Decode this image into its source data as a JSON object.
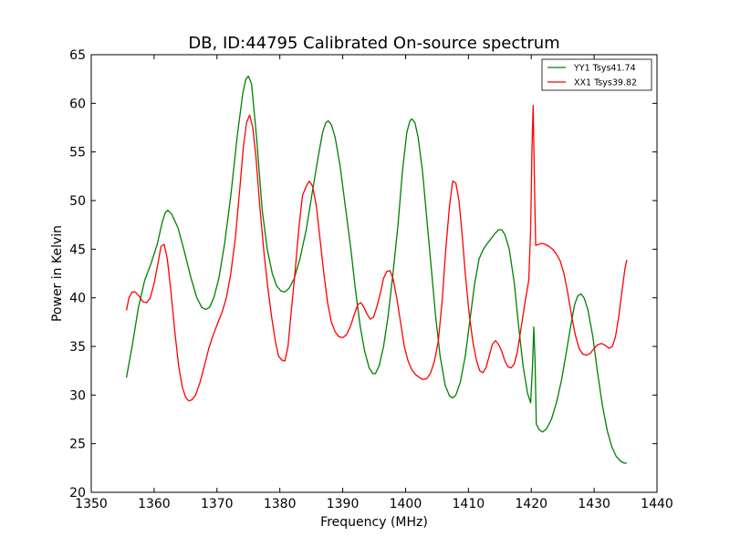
{
  "chart_data": {
    "type": "line",
    "title": "DB, ID:44795 Calibrated On-source spectrum",
    "xlabel": "Frequency (MHz)",
    "ylabel": "Power in Kelvin",
    "xlim": [
      1350,
      1440
    ],
    "ylim": [
      20,
      65
    ],
    "xticks": [
      1350,
      1360,
      1370,
      1380,
      1390,
      1400,
      1410,
      1420,
      1430,
      1440
    ],
    "yticks": [
      20,
      25,
      30,
      35,
      40,
      45,
      50,
      55,
      60,
      65
    ],
    "grid": false,
    "legend_position": "top-right",
    "series": [
      {
        "name": "YY1 Tsys41.74",
        "color": "#008000",
        "points": [
          [
            1355.6,
            31.8
          ],
          [
            1356.5,
            35.0
          ],
          [
            1357.5,
            39.0
          ],
          [
            1358.5,
            41.8
          ],
          [
            1359.5,
            43.5
          ],
          [
            1360.5,
            45.5
          ],
          [
            1361.3,
            47.8
          ],
          [
            1361.8,
            48.8
          ],
          [
            1362.2,
            49.0
          ],
          [
            1362.8,
            48.6
          ],
          [
            1363.8,
            47.2
          ],
          [
            1364.8,
            44.8
          ],
          [
            1365.8,
            42.2
          ],
          [
            1366.8,
            40.0
          ],
          [
            1367.6,
            39.0
          ],
          [
            1368.2,
            38.8
          ],
          [
            1368.8,
            39.0
          ],
          [
            1369.5,
            40.0
          ],
          [
            1370.3,
            42.0
          ],
          [
            1371.2,
            45.5
          ],
          [
            1372.2,
            50.5
          ],
          [
            1373.2,
            56.5
          ],
          [
            1374.1,
            61.0
          ],
          [
            1374.6,
            62.5
          ],
          [
            1375.0,
            62.8
          ],
          [
            1375.5,
            62.0
          ],
          [
            1376.3,
            56.5
          ],
          [
            1377.2,
            49.0
          ],
          [
            1378.0,
            45.0
          ],
          [
            1378.8,
            42.5
          ],
          [
            1379.5,
            41.2
          ],
          [
            1380.2,
            40.7
          ],
          [
            1380.8,
            40.6
          ],
          [
            1381.5,
            41.0
          ],
          [
            1382.3,
            42.0
          ],
          [
            1383.2,
            44.0
          ],
          [
            1384.2,
            47.0
          ],
          [
            1385.2,
            51.0
          ],
          [
            1386.1,
            54.5
          ],
          [
            1386.8,
            57.0
          ],
          [
            1387.3,
            58.0
          ],
          [
            1387.7,
            58.2
          ],
          [
            1388.2,
            57.8
          ],
          [
            1388.8,
            56.5
          ],
          [
            1389.6,
            53.5
          ],
          [
            1390.5,
            49.0
          ],
          [
            1391.3,
            45.0
          ],
          [
            1392.0,
            41.0
          ],
          [
            1392.8,
            37.0
          ],
          [
            1393.5,
            34.5
          ],
          [
            1394.2,
            32.8
          ],
          [
            1394.8,
            32.2
          ],
          [
            1395.2,
            32.2
          ],
          [
            1395.8,
            33.0
          ],
          [
            1396.5,
            35.0
          ],
          [
            1397.2,
            38.0
          ],
          [
            1398.0,
            42.5
          ],
          [
            1398.8,
            47.5
          ],
          [
            1399.5,
            53.0
          ],
          [
            1400.2,
            57.0
          ],
          [
            1400.7,
            58.2
          ],
          [
            1401.0,
            58.4
          ],
          [
            1401.5,
            58.0
          ],
          [
            1402.0,
            56.5
          ],
          [
            1402.7,
            53.0
          ],
          [
            1403.4,
            48.0
          ],
          [
            1404.1,
            43.0
          ],
          [
            1404.8,
            38.0
          ],
          [
            1405.5,
            34.0
          ],
          [
            1406.3,
            31.0
          ],
          [
            1407.0,
            29.9
          ],
          [
            1407.5,
            29.7
          ],
          [
            1408.0,
            30.0
          ],
          [
            1408.7,
            31.3
          ],
          [
            1409.5,
            34.0
          ],
          [
            1410.3,
            38.0
          ],
          [
            1411.0,
            41.5
          ],
          [
            1411.7,
            44.0
          ],
          [
            1412.3,
            44.9
          ],
          [
            1412.9,
            45.5
          ],
          [
            1413.5,
            46.0
          ],
          [
            1414.2,
            46.6
          ],
          [
            1414.8,
            47.0
          ],
          [
            1415.3,
            47.0
          ],
          [
            1415.8,
            46.5
          ],
          [
            1416.5,
            45.0
          ],
          [
            1417.3,
            41.5
          ],
          [
            1418.0,
            37.0
          ],
          [
            1418.7,
            33.0
          ],
          [
            1419.4,
            30.2
          ],
          [
            1419.9,
            29.2
          ],
          [
            1420.2,
            33.0
          ],
          [
            1420.4,
            37.0
          ],
          [
            1420.6,
            33.5
          ],
          [
            1420.8,
            27.0
          ],
          [
            1421.3,
            26.4
          ],
          [
            1421.8,
            26.2
          ],
          [
            1422.4,
            26.5
          ],
          [
            1423.2,
            27.5
          ],
          [
            1424.0,
            29.2
          ],
          [
            1424.8,
            31.5
          ],
          [
            1425.6,
            34.5
          ],
          [
            1426.3,
            37.2
          ],
          [
            1426.9,
            39.3
          ],
          [
            1427.4,
            40.2
          ],
          [
            1427.9,
            40.4
          ],
          [
            1428.4,
            40.0
          ],
          [
            1429.0,
            38.8
          ],
          [
            1429.8,
            36.0
          ],
          [
            1430.5,
            32.5
          ],
          [
            1431.3,
            29.0
          ],
          [
            1432.1,
            26.3
          ],
          [
            1432.8,
            24.7
          ],
          [
            1433.5,
            23.7
          ],
          [
            1434.2,
            23.2
          ],
          [
            1434.8,
            23.0
          ],
          [
            1435.2,
            23.0
          ]
        ]
      },
      {
        "name": "XX1 Tsys39.82",
        "color": "#ff0000",
        "points": [
          [
            1355.6,
            38.7
          ],
          [
            1356.0,
            40.0
          ],
          [
            1356.5,
            40.6
          ],
          [
            1357.0,
            40.6
          ],
          [
            1357.6,
            40.2
          ],
          [
            1358.2,
            39.6
          ],
          [
            1358.8,
            39.5
          ],
          [
            1359.4,
            40.0
          ],
          [
            1360.0,
            41.5
          ],
          [
            1360.6,
            43.5
          ],
          [
            1361.1,
            45.3
          ],
          [
            1361.6,
            45.5
          ],
          [
            1362.1,
            44.0
          ],
          [
            1362.7,
            40.5
          ],
          [
            1363.3,
            36.5
          ],
          [
            1363.9,
            33.0
          ],
          [
            1364.5,
            30.8
          ],
          [
            1365.0,
            29.8
          ],
          [
            1365.5,
            29.4
          ],
          [
            1366.0,
            29.5
          ],
          [
            1366.6,
            30.0
          ],
          [
            1367.3,
            31.3
          ],
          [
            1368.0,
            33.0
          ],
          [
            1368.7,
            34.8
          ],
          [
            1369.3,
            36.0
          ],
          [
            1370.0,
            37.2
          ],
          [
            1370.8,
            38.5
          ],
          [
            1371.5,
            40.0
          ],
          [
            1372.2,
            42.5
          ],
          [
            1372.9,
            46.0
          ],
          [
            1373.6,
            51.0
          ],
          [
            1374.2,
            55.5
          ],
          [
            1374.7,
            58.0
          ],
          [
            1375.2,
            58.8
          ],
          [
            1375.7,
            57.5
          ],
          [
            1376.2,
            54.5
          ],
          [
            1376.8,
            49.5
          ],
          [
            1377.5,
            44.5
          ],
          [
            1378.1,
            41.0
          ],
          [
            1378.7,
            38.0
          ],
          [
            1379.3,
            35.5
          ],
          [
            1379.8,
            34.0
          ],
          [
            1380.3,
            33.6
          ],
          [
            1380.8,
            33.5
          ],
          [
            1381.3,
            35.0
          ],
          [
            1381.8,
            38.5
          ],
          [
            1382.4,
            42.5
          ],
          [
            1383.0,
            47.0
          ],
          [
            1383.6,
            50.5
          ],
          [
            1384.2,
            51.5
          ],
          [
            1384.7,
            52.0
          ],
          [
            1385.2,
            51.5
          ],
          [
            1385.8,
            49.5
          ],
          [
            1386.4,
            46.0
          ],
          [
            1387.0,
            42.5
          ],
          [
            1387.6,
            39.5
          ],
          [
            1388.2,
            37.5
          ],
          [
            1388.8,
            36.5
          ],
          [
            1389.4,
            36.0
          ],
          [
            1390.0,
            35.9
          ],
          [
            1390.6,
            36.2
          ],
          [
            1391.2,
            37.0
          ],
          [
            1391.8,
            38.2
          ],
          [
            1392.4,
            39.3
          ],
          [
            1392.9,
            39.5
          ],
          [
            1393.4,
            39.0
          ],
          [
            1393.9,
            38.3
          ],
          [
            1394.4,
            37.8
          ],
          [
            1394.9,
            38.0
          ],
          [
            1395.4,
            39.0
          ],
          [
            1396.0,
            40.5
          ],
          [
            1396.5,
            42.0
          ],
          [
            1397.0,
            42.7
          ],
          [
            1397.5,
            42.8
          ],
          [
            1398.0,
            42.0
          ],
          [
            1398.6,
            40.0
          ],
          [
            1399.2,
            37.5
          ],
          [
            1399.8,
            35.0
          ],
          [
            1400.4,
            33.5
          ],
          [
            1401.0,
            32.6
          ],
          [
            1401.6,
            32.1
          ],
          [
            1402.2,
            31.8
          ],
          [
            1402.8,
            31.6
          ],
          [
            1403.4,
            31.7
          ],
          [
            1404.0,
            32.3
          ],
          [
            1404.6,
            33.5
          ],
          [
            1405.2,
            35.5
          ],
          [
            1405.8,
            39.5
          ],
          [
            1406.4,
            45.0
          ],
          [
            1407.0,
            49.5
          ],
          [
            1407.5,
            52.0
          ],
          [
            1408.0,
            51.8
          ],
          [
            1408.5,
            50.0
          ],
          [
            1409.0,
            46.5
          ],
          [
            1409.5,
            42.5
          ],
          [
            1410.1,
            38.5
          ],
          [
            1410.7,
            35.5
          ],
          [
            1411.3,
            33.5
          ],
          [
            1411.8,
            32.5
          ],
          [
            1412.3,
            32.3
          ],
          [
            1412.8,
            32.8
          ],
          [
            1413.3,
            34.0
          ],
          [
            1413.8,
            35.2
          ],
          [
            1414.3,
            35.6
          ],
          [
            1414.8,
            35.2
          ],
          [
            1415.3,
            34.5
          ],
          [
            1415.8,
            33.5
          ],
          [
            1416.3,
            32.9
          ],
          [
            1416.8,
            32.8
          ],
          [
            1417.3,
            33.2
          ],
          [
            1417.8,
            34.5
          ],
          [
            1418.4,
            37.0
          ],
          [
            1419.0,
            39.5
          ],
          [
            1419.6,
            41.8
          ],
          [
            1419.9,
            47.0
          ],
          [
            1420.1,
            55.0
          ],
          [
            1420.3,
            59.8
          ],
          [
            1420.5,
            52.0
          ],
          [
            1420.7,
            45.4
          ],
          [
            1421.2,
            45.5
          ],
          [
            1421.7,
            45.6
          ],
          [
            1422.2,
            45.5
          ],
          [
            1422.8,
            45.3
          ],
          [
            1423.4,
            45.0
          ],
          [
            1424.0,
            44.5
          ],
          [
            1424.6,
            43.8
          ],
          [
            1425.2,
            42.5
          ],
          [
            1425.8,
            40.5
          ],
          [
            1426.4,
            38.2
          ],
          [
            1427.0,
            36.2
          ],
          [
            1427.6,
            34.8
          ],
          [
            1428.2,
            34.2
          ],
          [
            1428.8,
            34.1
          ],
          [
            1429.4,
            34.3
          ],
          [
            1430.0,
            34.8
          ],
          [
            1430.6,
            35.2
          ],
          [
            1431.2,
            35.3
          ],
          [
            1431.8,
            35.1
          ],
          [
            1432.4,
            34.8
          ],
          [
            1432.9,
            35.0
          ],
          [
            1433.4,
            36.0
          ],
          [
            1433.9,
            38.0
          ],
          [
            1434.4,
            40.5
          ],
          [
            1434.9,
            43.0
          ],
          [
            1435.2,
            43.9
          ]
        ]
      }
    ]
  }
}
